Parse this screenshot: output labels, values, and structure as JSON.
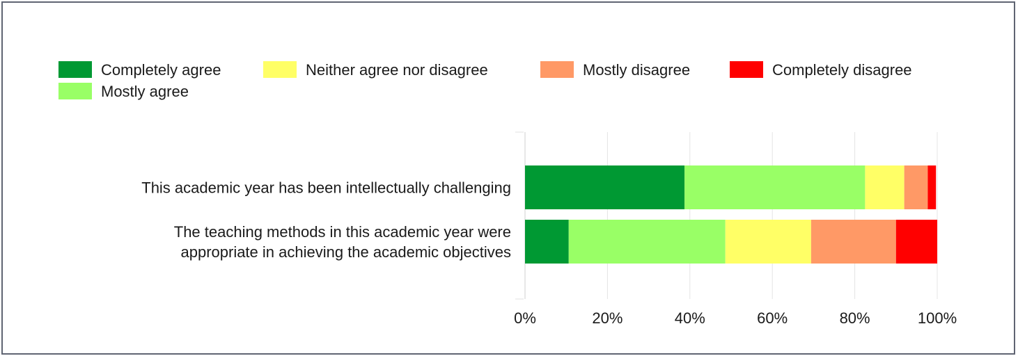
{
  "chart_data": {
    "type": "bar",
    "orientation": "horizontal",
    "stacked": "percent",
    "title": "",
    "xlabel": "",
    "ylabel": "",
    "xlim": [
      0,
      100
    ],
    "x_ticks": [
      "0%",
      "20%",
      "40%",
      "60%",
      "80%",
      "100%"
    ],
    "grid": true,
    "legend_position": "top",
    "categories": [
      [
        "This academic year has been intellectually challenging"
      ],
      [
        "The teaching methods in this academic year were",
        "appropriate in achieving the academic objectives"
      ]
    ],
    "series": [
      {
        "name": "Completely agree",
        "color": "#009933",
        "values": [
          38.7,
          10.6
        ]
      },
      {
        "name": "Mostly agree",
        "color": "#99ff66",
        "values": [
          43.8,
          38.0
        ]
      },
      {
        "name": "Neither agree nor disagree",
        "color": "#ffff66",
        "values": [
          9.5,
          20.8
        ]
      },
      {
        "name": "Mostly disagree",
        "color": "#ff9966",
        "values": [
          5.7,
          20.6
        ]
      },
      {
        "name": "Completely disagree",
        "color": "#ff0000",
        "values": [
          2.0,
          10.0
        ]
      }
    ]
  }
}
